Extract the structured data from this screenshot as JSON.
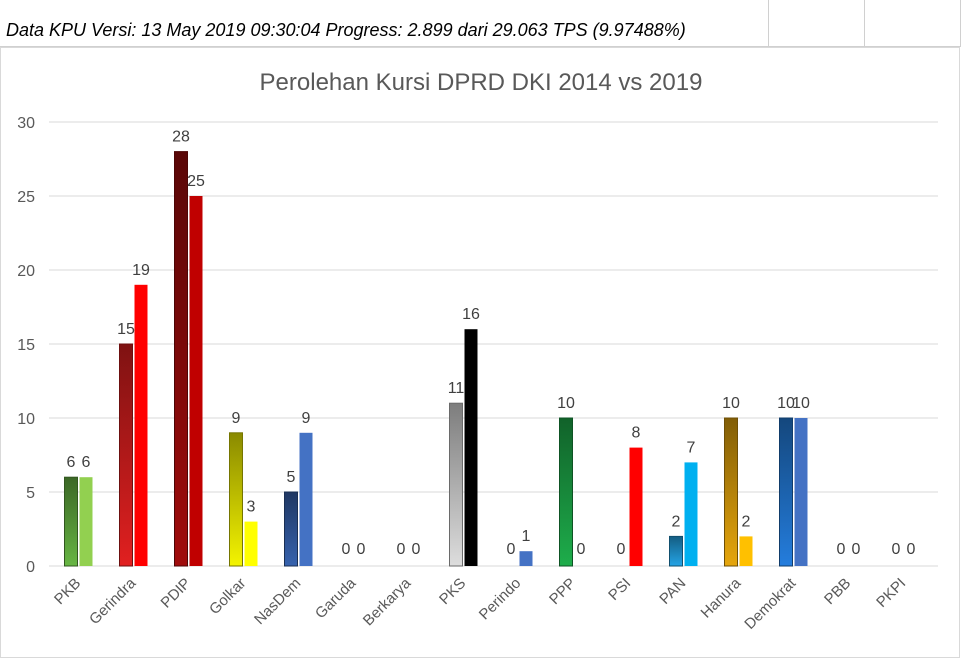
{
  "header": {
    "text": "Data KPU Versi: 13 May 2019 09:30:04 Progress: 2.899 dari 29.063 TPS (9.97488%)"
  },
  "chart_data": {
    "type": "bar",
    "title": "Perolehan Kursi DPRD DKI 2014 vs 2019",
    "xlabel": "",
    "ylabel": "",
    "ylim": [
      0,
      30
    ],
    "yticks": [
      0,
      5,
      10,
      15,
      20,
      25,
      30
    ],
    "grid": true,
    "categories": [
      "PKB",
      "Gerindra",
      "PDIP",
      "Golkar",
      "NasDem",
      "Garuda",
      "Berkarya",
      "PKS",
      "Perindo",
      "PPP",
      "PSI",
      "PAN",
      "Hanura",
      "Demokrat",
      "PBB",
      "PKPI"
    ],
    "series": [
      {
        "values": [
          6,
          15,
          28,
          9,
          5,
          0,
          0,
          11,
          0,
          10,
          0,
          2,
          10,
          10,
          0,
          0
        ],
        "colors": [
          "#5a9e3a",
          "#c41c1c",
          "#8b0a0a",
          "#d4d400",
          "#2f5597",
          "#000000",
          "#000000",
          "#c0c0c0",
          "#000000",
          "#1a9641",
          "#000000",
          "#1f8fc8",
          "#c8900a",
          "#1f6dc0",
          "#000000",
          "#000000"
        ]
      },
      {
        "values": [
          6,
          19,
          25,
          3,
          9,
          0,
          0,
          16,
          1,
          0,
          8,
          7,
          2,
          10,
          0,
          0
        ],
        "colors": [
          "#92d050",
          "#ff0000",
          "#c00000",
          "#ffff00",
          "#4472c4",
          "#000000",
          "#000000",
          "#000000",
          "#4472c4",
          "#00b050",
          "#ff0000",
          "#00b0f0",
          "#ffc000",
          "#4472c4",
          "#000000",
          "#000000"
        ]
      }
    ]
  }
}
